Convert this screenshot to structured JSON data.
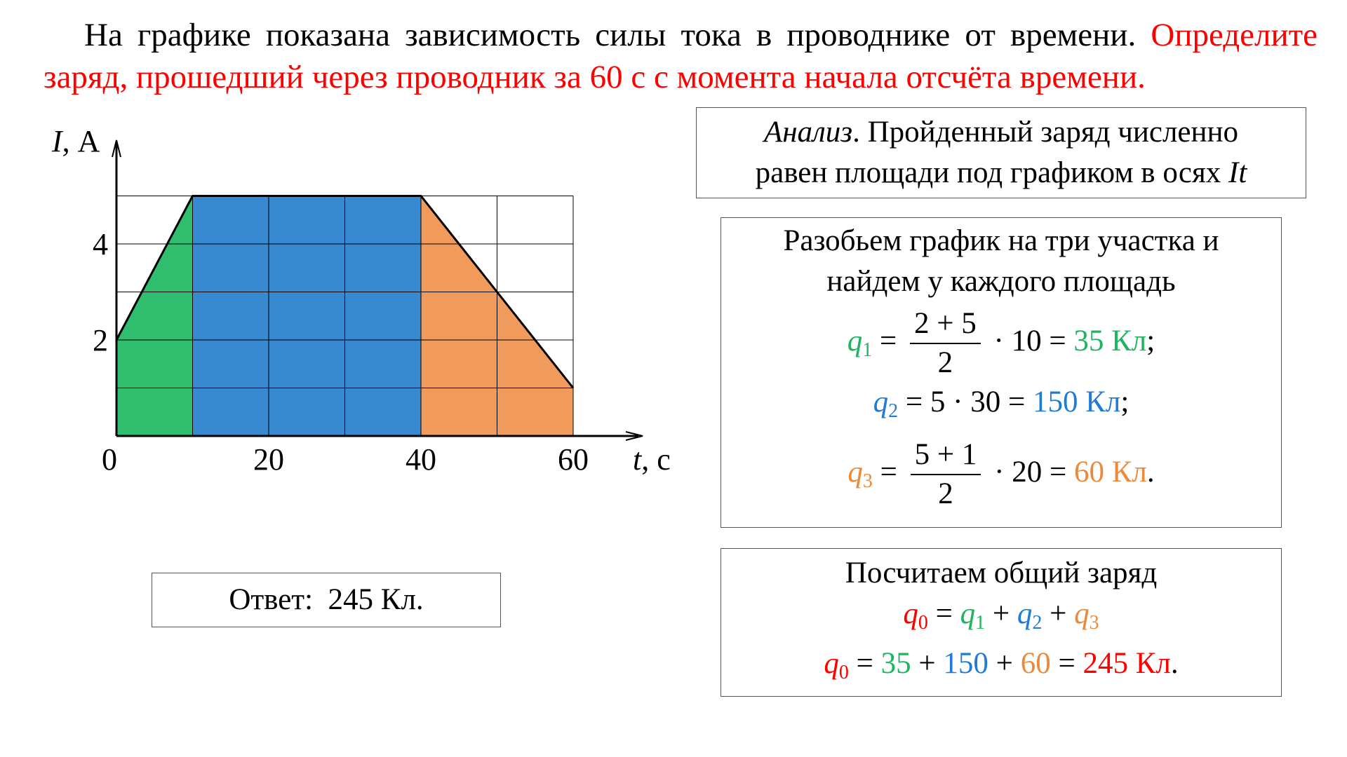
{
  "problem": {
    "text_black": "На графике показана зависимость силы тока в проводнике от времени. ",
    "text_red": "Определите заряд, прошедший через проводник за 60 с с момента начала отсчёта времени."
  },
  "analysis": {
    "italic": "Анализ",
    "rest_line1": ". Пройденный заряд численно",
    "line2": "равен площади под графиком в осях ",
    "axes_symbol": "It"
  },
  "split": {
    "line1": "Разобьем график на три участка и",
    "line2": "найдем у каждого площадь",
    "q1": {
      "var": "q",
      "sub": "1",
      "eq": "=",
      "num": "2 + 5",
      "den": "2",
      "tail": "· 10 =",
      "result": "35 Кл",
      "end": ";"
    },
    "q2": {
      "var": "q",
      "sub": "2",
      "expr": "= 5 · 30 =",
      "result": "150 Кл",
      "end": ";"
    },
    "q3": {
      "var": "q",
      "sub": "3",
      "eq": "=",
      "num": "5 + 1",
      "den": "2",
      "tail": "· 20 =",
      "result": "60 Кл",
      "end": "."
    }
  },
  "total": {
    "line1": "Посчитаем общий заряд",
    "q0": {
      "var": "q",
      "sub": "0"
    },
    "sum_symbols": {
      "eq": "=",
      "plus": "+",
      "t1": "q",
      "s1": "1",
      "t2": "q",
      "s2": "2",
      "t3": "q",
      "s3": "3"
    },
    "sum_values": {
      "eq": "=",
      "plus": "+",
      "v1": "35",
      "v2": "150",
      "v3": "60",
      "eq2": "=",
      "result": "245 Кл",
      "end": "."
    }
  },
  "answer": {
    "label": "Ответ:",
    "value": "245 Кл."
  },
  "colors": {
    "green": "#20b460",
    "blue": "#1f7bd6",
    "orange": "#ec8a3c",
    "red": "#ff0000"
  },
  "chart_data": {
    "type": "area",
    "ylabel_var": "I",
    "ylabel_unit": ", А",
    "xlabel_var": "t",
    "xlabel_unit": ", с",
    "xlim": [
      0,
      60
    ],
    "ylim": [
      0,
      5
    ],
    "x_ticks": [
      0,
      20,
      40,
      60
    ],
    "y_ticks": [
      2,
      4
    ],
    "grid": true,
    "grid_x_step": 10,
    "grid_y_step": 1,
    "series": [
      {
        "points": [
          [
            0,
            2
          ],
          [
            10,
            5
          ],
          [
            20,
            5
          ],
          [
            30,
            5
          ],
          [
            40,
            5
          ],
          [
            50,
            3
          ],
          [
            60,
            1
          ]
        ]
      }
    ],
    "regions": [
      {
        "x_from": 0,
        "x_to": 10,
        "color": "#30be6e"
      },
      {
        "x_from": 10,
        "x_to": 40,
        "color": "#3789d0"
      },
      {
        "x_from": 40,
        "x_to": 60,
        "color": "#f09a5c"
      }
    ]
  }
}
